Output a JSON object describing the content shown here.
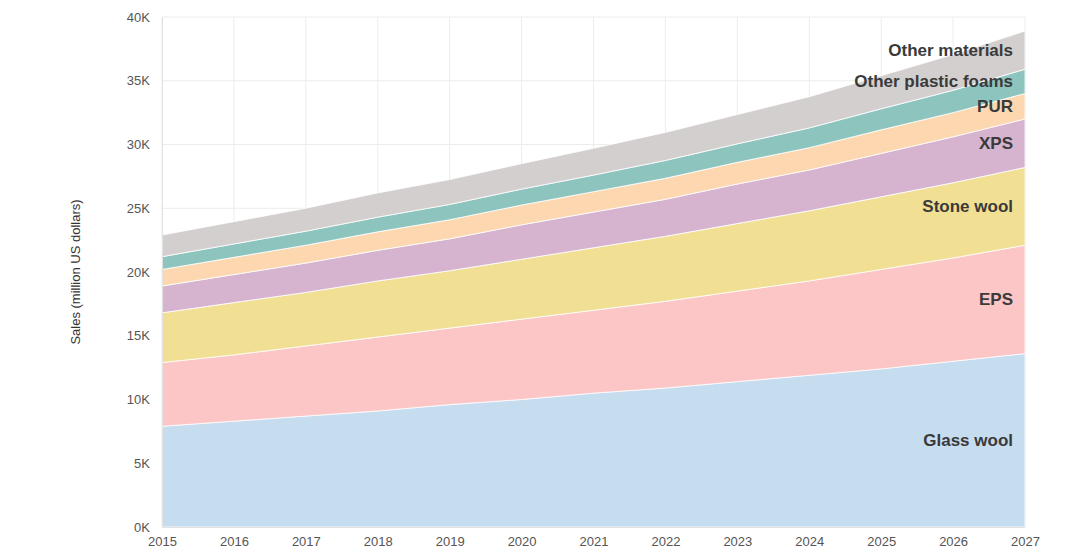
{
  "chart_data": {
    "type": "area",
    "stacked": true,
    "grid": true,
    "y_label": "Sales (million US dollars)",
    "x": [
      2015,
      2016,
      2017,
      2018,
      2019,
      2020,
      2021,
      2022,
      2023,
      2024,
      2025,
      2026,
      2027
    ],
    "xlim": [
      2015,
      2027
    ],
    "xticks": [
      2015,
      2016,
      2017,
      2018,
      2019,
      2020,
      2021,
      2022,
      2023,
      2024,
      2025,
      2026,
      2027
    ],
    "ylim": [
      0,
      40000
    ],
    "yticks": [
      {
        "value": 0,
        "label": "0K"
      },
      {
        "value": 5000,
        "label": "5K"
      },
      {
        "value": 10000,
        "label": "10K"
      },
      {
        "value": 15000,
        "label": "15K"
      },
      {
        "value": 20000,
        "label": "20K"
      },
      {
        "value": 25000,
        "label": "25K"
      },
      {
        "value": 30000,
        "label": "30K"
      },
      {
        "value": 35000,
        "label": "35K"
      },
      {
        "value": 40000,
        "label": "40K"
      }
    ],
    "series": [
      {
        "name": "Glass wool",
        "color": "#c6dcef",
        "values": [
          7900,
          8300,
          8700,
          9100,
          9600,
          10000,
          10500,
          10900,
          11400,
          11900,
          12400,
          13000,
          13600
        ]
      },
      {
        "name": "EPS",
        "color": "#fcc5c6",
        "values": [
          5000,
          5200,
          5500,
          5800,
          6000,
          6300,
          6500,
          6800,
          7100,
          7400,
          7800,
          8100,
          8500
        ]
      },
      {
        "name": "Stone wool",
        "color": "#f1df94",
        "values": [
          3900,
          4100,
          4200,
          4400,
          4500,
          4700,
          4900,
          5100,
          5300,
          5500,
          5700,
          5900,
          6100
        ]
      },
      {
        "name": "XPS",
        "color": "#d6b3cf",
        "values": [
          2100,
          2200,
          2300,
          2400,
          2500,
          2700,
          2800,
          2900,
          3100,
          3200,
          3400,
          3600,
          3800
        ]
      },
      {
        "name": "PUR",
        "color": "#fcd7b0",
        "values": [
          1300,
          1350,
          1400,
          1450,
          1500,
          1550,
          1600,
          1650,
          1700,
          1750,
          1850,
          1900,
          2000
        ]
      },
      {
        "name": "Other plastic foams",
        "color": "#8dc5be",
        "values": [
          1000,
          1050,
          1100,
          1150,
          1200,
          1250,
          1300,
          1400,
          1450,
          1550,
          1650,
          1750,
          1900
        ]
      },
      {
        "name": "Other materials",
        "color": "#d3cfcf",
        "values": [
          1700,
          1750,
          1800,
          1900,
          1950,
          2000,
          2100,
          2200,
          2300,
          2450,
          2600,
          2800,
          3000
        ]
      }
    ]
  }
}
